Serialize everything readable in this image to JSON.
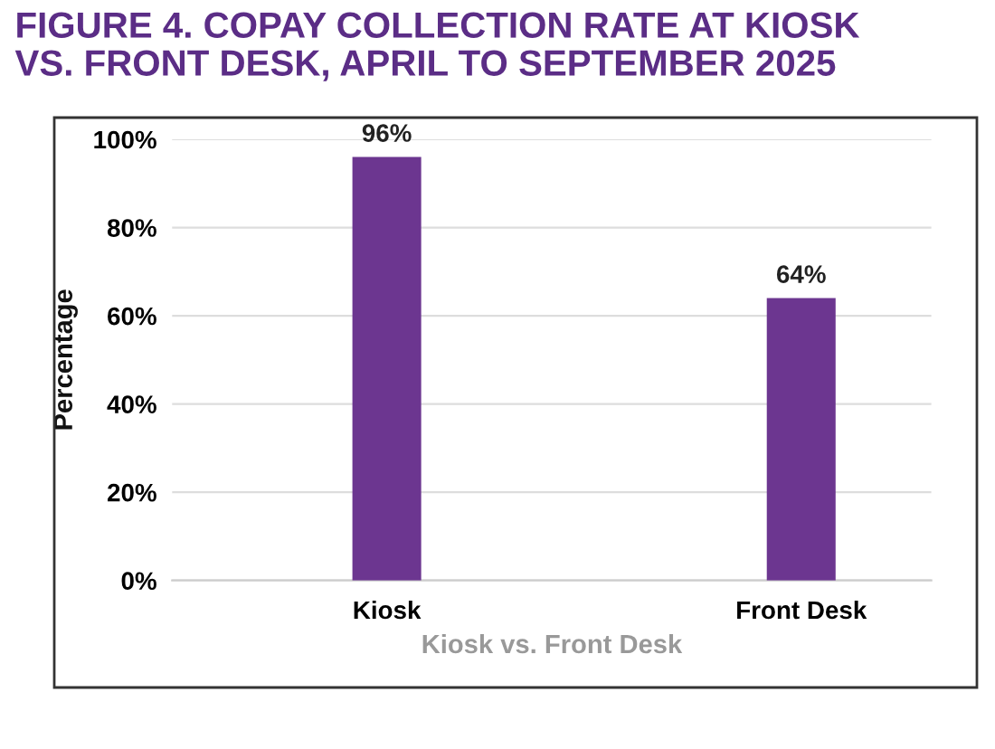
{
  "chart_data": {
    "type": "bar",
    "title": "FIGURE 4. COPAY COLLECTION RATE AT KIOSK\nVS. FRONT DESK, APRIL TO SEPTEMBER 2025",
    "xlabel": "Kiosk vs. Front Desk",
    "ylabel": "Percentage",
    "categories": [
      "Kiosk",
      "Front Desk"
    ],
    "values": [
      96,
      64
    ],
    "color": "#6c3690",
    "value_labels": [
      "96%",
      "64%"
    ],
    "ylim": [
      0,
      100
    ],
    "yticks": [
      {
        "value": 0,
        "label": "0%"
      },
      {
        "value": 20,
        "label": "20%"
      },
      {
        "value": 40,
        "label": "40%"
      },
      {
        "value": 60,
        "label": "60%"
      },
      {
        "value": 80,
        "label": "80%"
      },
      {
        "value": 100,
        "label": "100%"
      }
    ],
    "grid": "y"
  }
}
